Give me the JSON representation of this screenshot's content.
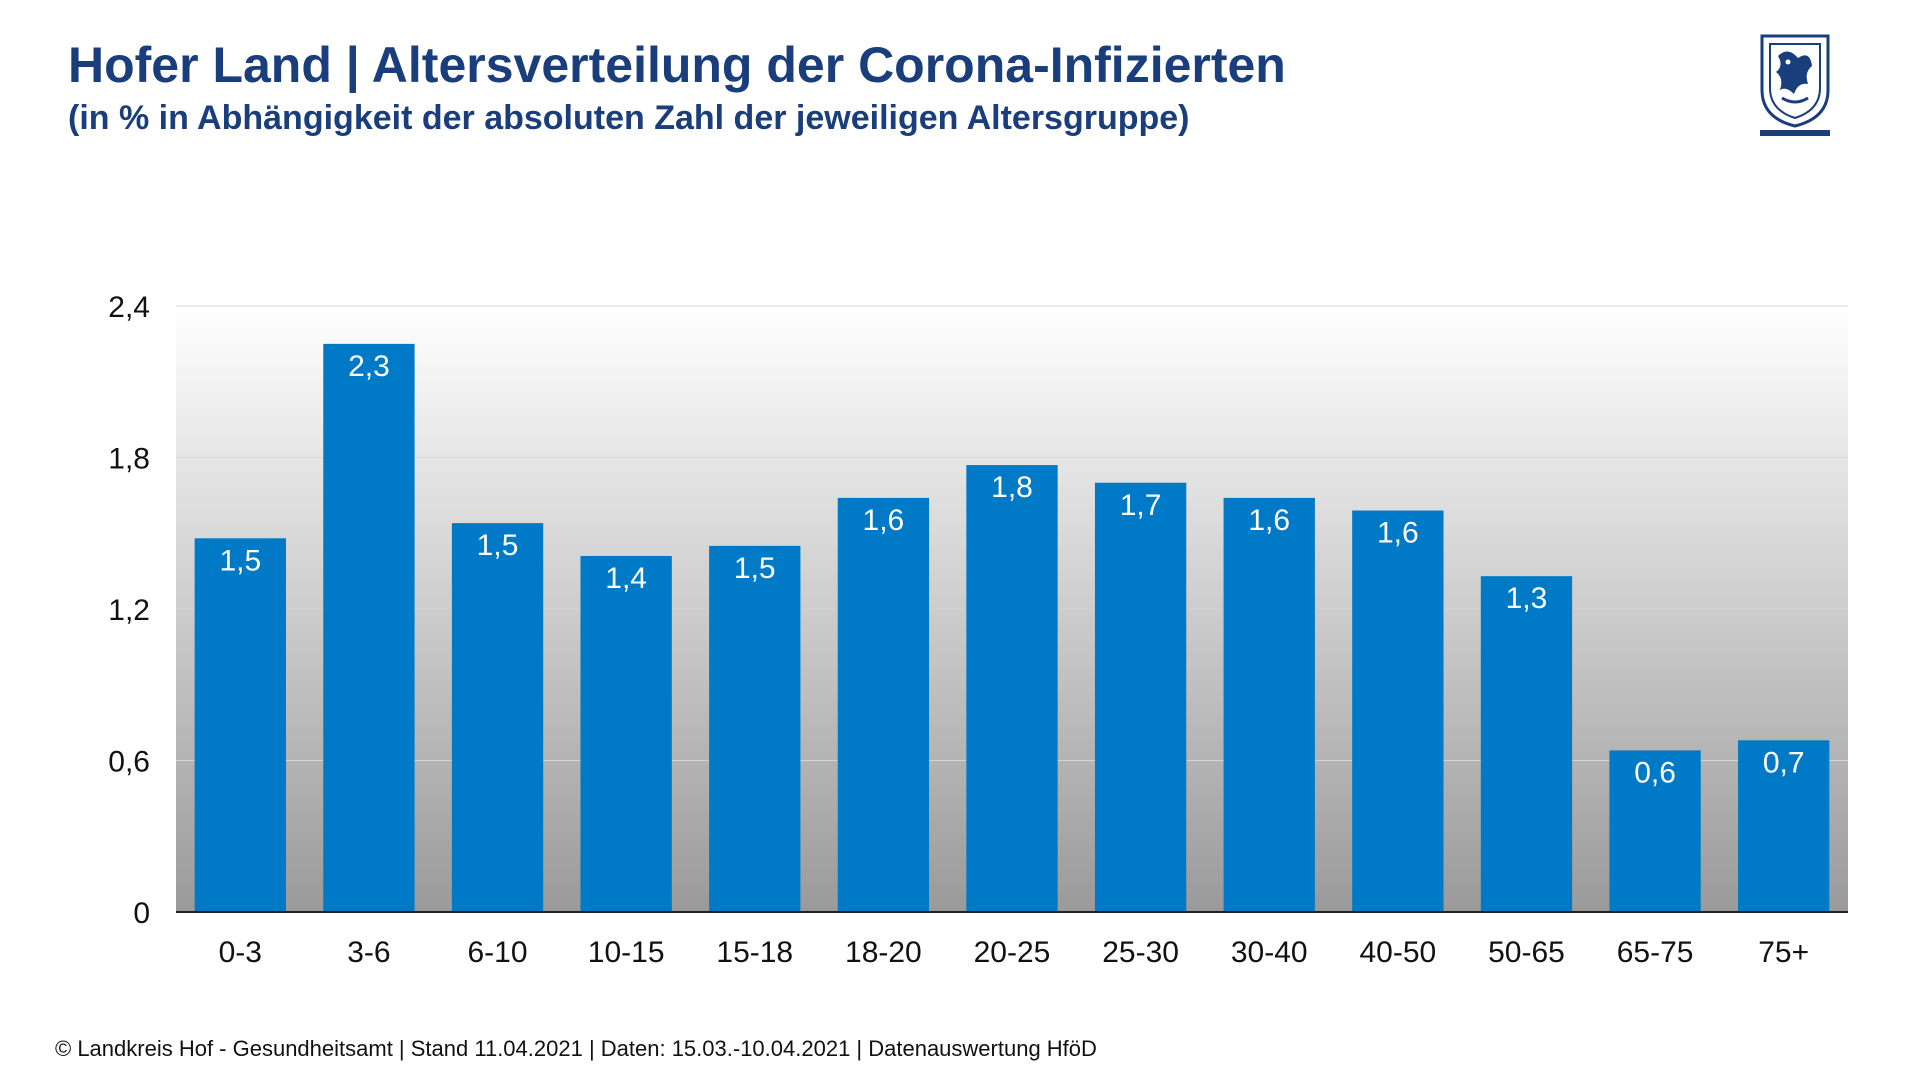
{
  "header": {
    "title": "Hofer Land | Altersverteilung der Corona-Infizierten",
    "subtitle": "(in % in Abhängigkeit der absoluten Zahl der jeweiligen Altersgruppe)",
    "logo": "landkreis-hof-coat-of-arms-icon"
  },
  "footer": {
    "text": "© Landkreis Hof - Gesundheitsamt | Stand 11.04.2021 | Daten: 15.03.-10.04.2021 | Datenauswertung HföD"
  },
  "colors": {
    "bar": "#007ac6",
    "title": "#1a3d7c",
    "bg_top": "#ffffff",
    "bg_bottom": "#9a9a9a"
  },
  "chart_data": {
    "type": "bar",
    "categories": [
      "0-3",
      "3-6",
      "6-10",
      "10-15",
      "15-18",
      "18-20",
      "20-25",
      "25-30",
      "30-40",
      "40-50",
      "50-65",
      "65-75",
      "75+"
    ],
    "values": [
      1.48,
      2.25,
      1.54,
      1.41,
      1.45,
      1.64,
      1.77,
      1.7,
      1.64,
      1.59,
      1.33,
      0.64,
      0.68
    ],
    "value_labels": [
      "1,5",
      "2,3",
      "1,5",
      "1,4",
      "1,5",
      "1,6",
      "1,8",
      "1,7",
      "1,6",
      "1,6",
      "1,3",
      "0,6",
      "0,7"
    ],
    "ylim": [
      0,
      2.4
    ],
    "yticks": [
      0,
      0.6,
      1.2,
      1.8,
      2.4
    ],
    "ytick_labels": [
      "0",
      "0,6",
      "1,2",
      "1,8",
      "2,4"
    ],
    "grid": true,
    "legend": "none"
  }
}
